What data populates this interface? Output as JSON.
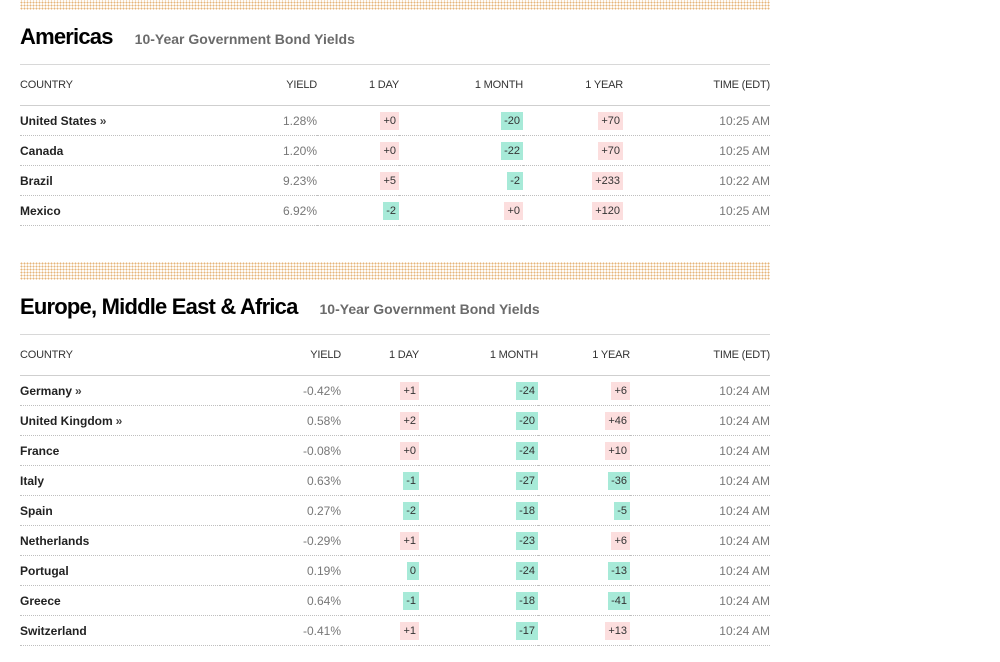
{
  "colors": {
    "positive_bg": "#fcdede",
    "negative_bg": "#a7ead8",
    "band": "#e6b47a"
  },
  "americas": {
    "title": "Americas",
    "subtitle": "10-Year Government Bond Yields",
    "columns": [
      "COUNTRY",
      "YIELD",
      "1 DAY",
      "1 MONTH",
      "1 YEAR",
      "TIME (EDT)"
    ],
    "rows": [
      {
        "country": "United States",
        "link": "»",
        "yield": "1.28%",
        "day": "+0",
        "month": "-20",
        "year": "+70",
        "time": "10:25 AM"
      },
      {
        "country": "Canada",
        "link": "",
        "yield": "1.20%",
        "day": "+0",
        "month": "-22",
        "year": "+70",
        "time": "10:25 AM"
      },
      {
        "country": "Brazil",
        "link": "",
        "yield": "9.23%",
        "day": "+5",
        "month": "-2",
        "year": "+233",
        "time": "10:22 AM"
      },
      {
        "country": "Mexico",
        "link": "",
        "yield": "6.92%",
        "day": "-2",
        "month": "+0",
        "year": "+120",
        "time": "10:25 AM"
      }
    ]
  },
  "emea": {
    "title": "Europe, Middle East & Africa",
    "subtitle": "10-Year Government Bond Yields",
    "columns": [
      "COUNTRY",
      "YIELD",
      "1 DAY",
      "1 MONTH",
      "1 YEAR",
      "TIME (EDT)"
    ],
    "rows": [
      {
        "country": "Germany",
        "link": "»",
        "yield": "-0.42%",
        "day": "+1",
        "month": "-24",
        "year": "+6",
        "time": "10:24 AM"
      },
      {
        "country": "United Kingdom",
        "link": "»",
        "yield": "0.58%",
        "day": "+2",
        "month": "-20",
        "year": "+46",
        "time": "10:24 AM"
      },
      {
        "country": "France",
        "link": "",
        "yield": "-0.08%",
        "day": "+0",
        "month": "-24",
        "year": "+10",
        "time": "10:24 AM"
      },
      {
        "country": "Italy",
        "link": "",
        "yield": "0.63%",
        "day": "-1",
        "month": "-27",
        "year": "-36",
        "time": "10:24 AM"
      },
      {
        "country": "Spain",
        "link": "",
        "yield": "0.27%",
        "day": "-2",
        "month": "-18",
        "year": "-5",
        "time": "10:24 AM"
      },
      {
        "country": "Netherlands",
        "link": "",
        "yield": "-0.29%",
        "day": "+1",
        "month": "-23",
        "year": "+6",
        "time": "10:24 AM"
      },
      {
        "country": "Portugal",
        "link": "",
        "yield": "0.19%",
        "day": "0",
        "month": "-24",
        "year": "-13",
        "time": "10:24 AM"
      },
      {
        "country": "Greece",
        "link": "",
        "yield": "0.64%",
        "day": "-1",
        "month": "-18",
        "year": "-41",
        "time": "10:24 AM"
      },
      {
        "country": "Switzerland",
        "link": "",
        "yield": "-0.41%",
        "day": "+1",
        "month": "-17",
        "year": "+13",
        "time": "10:24 AM"
      }
    ]
  }
}
